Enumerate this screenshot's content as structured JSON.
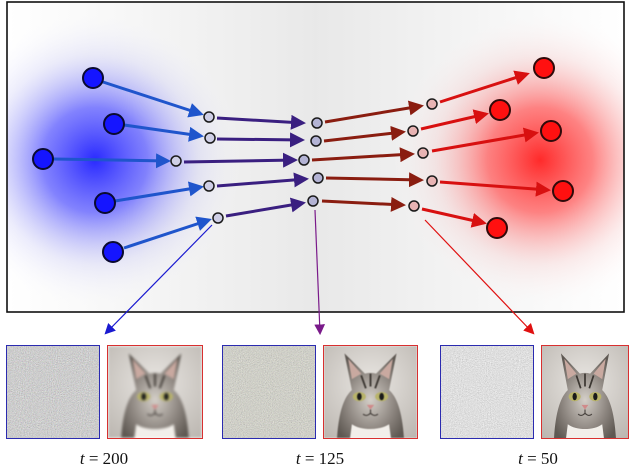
{
  "panels": [
    {
      "t_symbol": "t",
      "equals": "=",
      "t_value": "200"
    },
    {
      "t_symbol": "t",
      "equals": "=",
      "t_value": "125"
    },
    {
      "t_symbol": "t",
      "equals": "=",
      "t_value": "50"
    }
  ],
  "colors": {
    "source_dot": "#1515ff",
    "target_dot": "#ff1010",
    "arrow_blue": "#1f55cc",
    "arrow_purple": "#3a1f80",
    "arrow_darkred": "#8a1d10",
    "arrow_red": "#d81010",
    "intermediate_dot": "#b8b8d8",
    "noise_border": "#2b2bb0",
    "image_border": "#d83030"
  },
  "icons": {
    "noisy_image": "noise-image-icon",
    "cat_image": "cat-image-icon"
  }
}
